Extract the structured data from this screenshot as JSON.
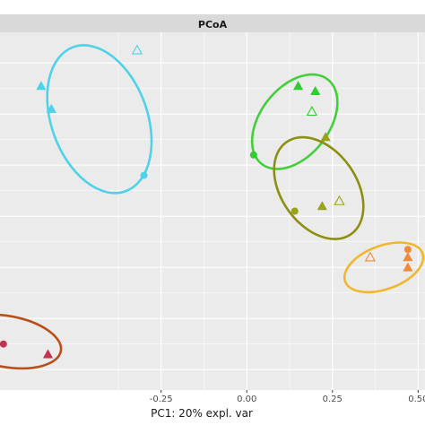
{
  "chart_data": {
    "type": "scatter",
    "title": "",
    "facet_label": "PCoA",
    "xlabel": "PC1: 20% expl. var",
    "ylabel": "",
    "xlim": [
      -0.72,
      0.52
    ],
    "ylim": [
      -0.68,
      0.72
    ],
    "x_ticks": [
      -0.25,
      0,
      0.25,
      0.5
    ],
    "x_tick_labels": [
      "-0.25",
      "0.00",
      "0.25",
      "0.50"
    ],
    "y_grid": [
      -0.6,
      -0.4,
      -0.2,
      0,
      0.2,
      0.4,
      0.6
    ],
    "grid": true,
    "legend": "none",
    "series": [
      {
        "color": "#4dd2ea",
        "points": [
          {
            "x": -0.32,
            "y": 0.65,
            "shape": "triangle-open"
          },
          {
            "x": -0.6,
            "y": 0.51,
            "shape": "triangle"
          },
          {
            "x": -0.57,
            "y": 0.42,
            "shape": "triangle"
          },
          {
            "x": -0.3,
            "y": 0.16,
            "shape": "circle"
          }
        ],
        "ellipse": {
          "cx": -0.43,
          "cy": 0.38,
          "rx": 0.14,
          "ry": 0.3,
          "angle_deg": -20
        }
      },
      {
        "color": "#2ecc2e",
        "points": [
          {
            "x": 0.15,
            "y": 0.51,
            "shape": "triangle"
          },
          {
            "x": 0.2,
            "y": 0.49,
            "shape": "triangle"
          },
          {
            "x": 0.19,
            "y": 0.41,
            "shape": "triangle-open"
          },
          {
            "x": 0.02,
            "y": 0.24,
            "shape": "circle"
          }
        ],
        "ellipse": {
          "cx": 0.14,
          "cy": 0.37,
          "rx": 0.1,
          "ry": 0.21,
          "angle_deg": 38
        }
      },
      {
        "color": "#9aa217",
        "points": [
          {
            "x": 0.23,
            "y": 0.31,
            "shape": "triangle"
          },
          {
            "x": 0.27,
            "y": 0.06,
            "shape": "triangle-open"
          },
          {
            "x": 0.22,
            "y": 0.04,
            "shape": "triangle"
          },
          {
            "x": 0.14,
            "y": 0.02,
            "shape": "circle"
          }
        ],
        "ellipse": {
          "cx": 0.21,
          "cy": 0.11,
          "rx": 0.11,
          "ry": 0.22,
          "angle_deg": -35
        }
      },
      {
        "color": "#f08a3a",
        "points": [
          {
            "x": 0.36,
            "y": -0.16,
            "shape": "triangle-open"
          },
          {
            "x": 0.47,
            "y": -0.13,
            "shape": "circle"
          },
          {
            "x": 0.47,
            "y": -0.16,
            "shape": "triangle"
          },
          {
            "x": 0.47,
            "y": -0.2,
            "shape": "triangle"
          }
        ],
        "ellipse": {
          "cx": 0.4,
          "cy": -0.2,
          "rx": 0.12,
          "ry": 0.085,
          "angle_deg": -20
        }
      },
      {
        "color": "#c23352",
        "points": [
          {
            "x": -0.71,
            "y": -0.5,
            "shape": "circle"
          },
          {
            "x": -0.58,
            "y": -0.54,
            "shape": "triangle"
          }
        ],
        "ellipse": {
          "cx": -0.7,
          "cy": -0.49,
          "rx": 0.16,
          "ry": 0.1,
          "angle_deg": 10
        }
      }
    ],
    "ellipse_edge_colors": [
      "#4dd2ea",
      "#42cf3b",
      "#8c8f12",
      "#f2b62a",
      "#b8501a"
    ]
  }
}
